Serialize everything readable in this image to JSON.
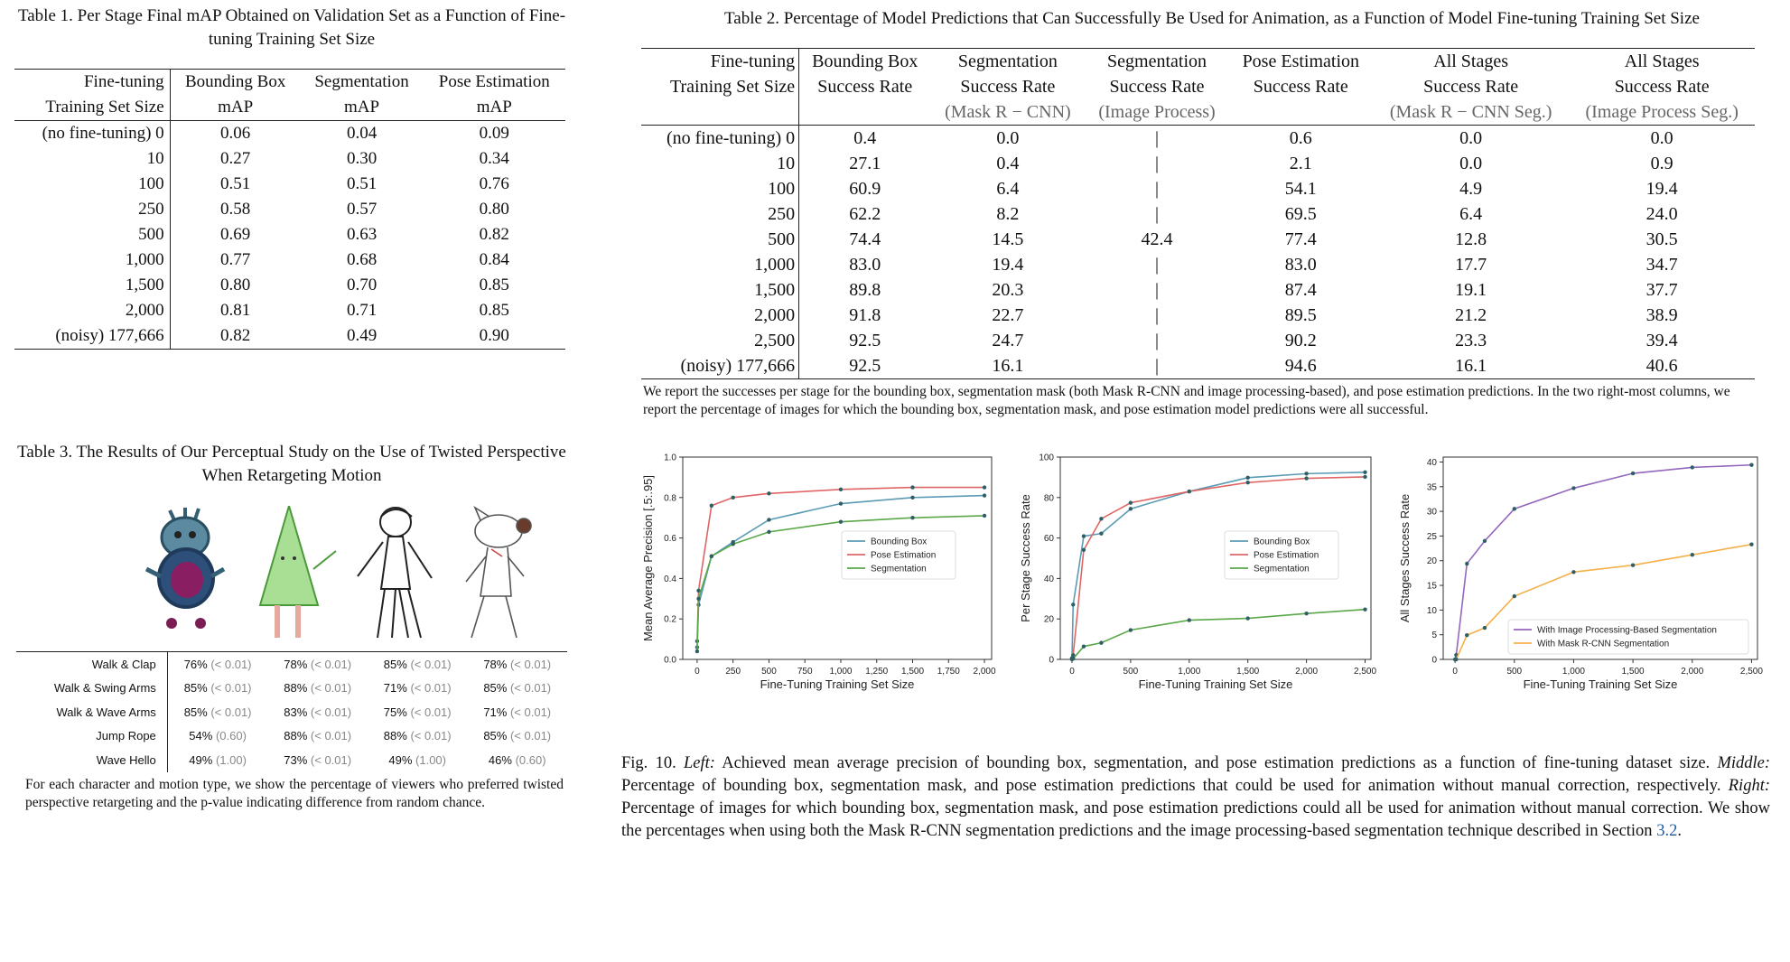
{
  "table1": {
    "caption": "Table 1.  Per Stage Final mAP Obtained on Validation Set as a Function of Fine-tuning Training Set Size",
    "headers": [
      [
        "Fine-tuning",
        "Training Set Size"
      ],
      [
        "Bounding Box",
        "mAP"
      ],
      [
        "Segmentation",
        "mAP"
      ],
      [
        "Pose Estimation",
        "mAP"
      ]
    ],
    "rows": [
      [
        "(no fine-tuning) 0",
        "0.06",
        "0.04",
        "0.09"
      ],
      [
        "10",
        "0.27",
        "0.30",
        "0.34"
      ],
      [
        "100",
        "0.51",
        "0.51",
        "0.76"
      ],
      [
        "250",
        "0.58",
        "0.57",
        "0.80"
      ],
      [
        "500",
        "0.69",
        "0.63",
        "0.82"
      ],
      [
        "1,000",
        "0.77",
        "0.68",
        "0.84"
      ],
      [
        "1,500",
        "0.80",
        "0.70",
        "0.85"
      ],
      [
        "2,000",
        "0.81",
        "0.71",
        "0.85"
      ],
      [
        "(noisy) 177,666",
        "0.82",
        "0.49",
        "0.90"
      ]
    ]
  },
  "table2": {
    "caption": "Table 2.  Percentage of Model Predictions that Can Successfully Be Used for Animation, as a Function of Model Fine-tuning Training Set Size",
    "headers": [
      [
        "Fine-tuning",
        "Training Set Size",
        ""
      ],
      [
        "Bounding Box",
        "Success Rate",
        ""
      ],
      [
        "Segmentation",
        "Success Rate",
        "(Mask R − CNN)"
      ],
      [
        "Segmentation",
        "Success Rate",
        "(Image Process)"
      ],
      [
        "Pose Estimation",
        "Success Rate",
        ""
      ],
      [
        "All Stages",
        "Success Rate",
        "(Mask R − CNN Seg.)"
      ],
      [
        "All Stages",
        "Success Rate",
        "(Image Process Seg.)"
      ]
    ],
    "rows": [
      [
        "(no fine-tuning) 0",
        "0.4",
        "0.0",
        "|",
        "0.6",
        "0.0",
        "0.0"
      ],
      [
        "10",
        "27.1",
        "0.4",
        "|",
        "2.1",
        "0.0",
        "0.9"
      ],
      [
        "100",
        "60.9",
        "6.4",
        "|",
        "54.1",
        "4.9",
        "19.4"
      ],
      [
        "250",
        "62.2",
        "8.2",
        "|",
        "69.5",
        "6.4",
        "24.0"
      ],
      [
        "500",
        "74.4",
        "14.5",
        "42.4",
        "77.4",
        "12.8",
        "30.5"
      ],
      [
        "1,000",
        "83.0",
        "19.4",
        "|",
        "83.0",
        "17.7",
        "34.7"
      ],
      [
        "1,500",
        "89.8",
        "20.3",
        "|",
        "87.4",
        "19.1",
        "37.7"
      ],
      [
        "2,000",
        "91.8",
        "22.7",
        "|",
        "89.5",
        "21.2",
        "38.9"
      ],
      [
        "2,500",
        "92.5",
        "24.7",
        "|",
        "90.2",
        "23.3",
        "39.4"
      ],
      [
        "(noisy) 177,666",
        "92.5",
        "16.1",
        "|",
        "94.6",
        "16.1",
        "40.6"
      ]
    ],
    "note": "We report the successes per stage for the bounding box, segmentation mask (both Mask R-CNN and image processing-based), and pose estimation predictions. In the two right-most columns, we report the percentage of images for which the bounding box, segmentation mask, and pose estimation model predictions were all successful."
  },
  "table3": {
    "caption": "Table 3.  The Results of Our Perceptual Study on the Use of Twisted Perspective When Retargeting Motion",
    "rows": [
      {
        "label": "Walk & Clap",
        "cells": [
          [
            "76%",
            "(< 0.01)"
          ],
          [
            "78%",
            "(< 0.01)"
          ],
          [
            "85%",
            "(< 0.01)"
          ],
          [
            "78%",
            "(< 0.01)"
          ]
        ]
      },
      {
        "label": "Walk & Swing Arms",
        "cells": [
          [
            "85%",
            "(< 0.01)"
          ],
          [
            "88%",
            "(< 0.01)"
          ],
          [
            "71%",
            "(< 0.01)"
          ],
          [
            "85%",
            "(< 0.01)"
          ]
        ]
      },
      {
        "label": "Walk & Wave Arms",
        "cells": [
          [
            "85%",
            "(< 0.01)"
          ],
          [
            "83%",
            "(< 0.01)"
          ],
          [
            "75%",
            "(< 0.01)"
          ],
          [
            "71%",
            "(< 0.01)"
          ]
        ]
      },
      {
        "label": "Jump Rope",
        "cells": [
          [
            "54%",
            "(0.60)"
          ],
          [
            "88%",
            "(< 0.01)"
          ],
          [
            "88%",
            "(< 0.01)"
          ],
          [
            "85%",
            "(< 0.01)"
          ]
        ]
      },
      {
        "label": "Wave Hello",
        "cells": [
          [
            "49%",
            "(1.00)"
          ],
          [
            "73%",
            "(< 0.01)"
          ],
          [
            "49%",
            "(1.00)"
          ],
          [
            "46%",
            "(0.60)"
          ]
        ]
      }
    ],
    "note": "For each character and motion type, we show the percentage of viewers who preferred twisted perspective retargeting and the p-value indicating difference from random chance."
  },
  "figure10": {
    "caption_label": "Fig. 10.",
    "left_label": "Left:",
    "left_text": " Achieved mean average precision of bounding box, segmentation, and pose estimation predictions as a function of fine-tuning dataset size.",
    "middle_label": "Middle:",
    "middle_text": " Percentage of bounding box, segmentation mask, and pose estimation predictions that could be used for animation without manual correction, respectively.",
    "right_label": "Right:",
    "right_text": " Percentage of images for which bounding box, segmentation mask, and pose estimation predictions could all be used for animation without manual correction. We show the percentages when using both the Mask R-CNN segmentation predictions and the image processing-based segmentation technique described in Section ",
    "section_ref": "3.2",
    "end": "."
  },
  "chart_data": [
    {
      "type": "line",
      "xlabel": "Fine-Tuning Training Set Size",
      "ylabel": "Mean Average Precision [.5:.95]",
      "xlim": [
        -100,
        2050
      ],
      "ylim": [
        0,
        1.0
      ],
      "xticks": [
        0,
        250,
        500,
        750,
        1000,
        1250,
        1500,
        1750,
        2000
      ],
      "xtick_labels": [
        "0",
        "250",
        "500",
        "750",
        "1,000",
        "1,250",
        "1,500",
        "1,750",
        "2,000"
      ],
      "yticks": [
        0.0,
        0.2,
        0.4,
        0.6,
        0.8,
        1.0
      ],
      "ytick_labels": [
        "0.0",
        "0.2",
        "0.4",
        "0.6",
        "0.8",
        "1.0"
      ],
      "legend_position": "center-right",
      "x": [
        0,
        10,
        100,
        250,
        500,
        1000,
        1500,
        2000
      ],
      "series": [
        {
          "name": "Bounding Box",
          "color": "#5b9bb5",
          "values": [
            0.06,
            0.27,
            0.51,
            0.58,
            0.69,
            0.77,
            0.8,
            0.81
          ]
        },
        {
          "name": "Pose Estimation",
          "color": "#e06666",
          "values": [
            0.09,
            0.34,
            0.76,
            0.8,
            0.82,
            0.84,
            0.85,
            0.85
          ]
        },
        {
          "name": "Segmentation",
          "color": "#5aa84a",
          "values": [
            0.04,
            0.3,
            0.51,
            0.57,
            0.63,
            0.68,
            0.7,
            0.71
          ]
        }
      ]
    },
    {
      "type": "line",
      "xlabel": "Fine-Tuning Training Set Size",
      "ylabel": "Per Stage Success Rate",
      "xlim": [
        -100,
        2550
      ],
      "ylim": [
        0,
        100
      ],
      "xticks": [
        0,
        500,
        1000,
        1500,
        2000,
        2500
      ],
      "xtick_labels": [
        "0",
        "500",
        "1,000",
        "1,500",
        "2,000",
        "2,500"
      ],
      "yticks": [
        0,
        20,
        40,
        60,
        80,
        100
      ],
      "ytick_labels": [
        "0",
        "20",
        "40",
        "60",
        "80",
        "100"
      ],
      "legend_position": "center-right",
      "x": [
        0,
        10,
        100,
        250,
        500,
        1000,
        1500,
        2000,
        2500
      ],
      "series": [
        {
          "name": "Bounding Box",
          "color": "#5b9bb5",
          "values": [
            0.4,
            27.1,
            60.9,
            62.2,
            74.4,
            83.0,
            89.8,
            91.8,
            92.5
          ]
        },
        {
          "name": "Pose Estimation",
          "color": "#e06666",
          "values": [
            0.6,
            2.1,
            54.1,
            69.5,
            77.4,
            83.0,
            87.4,
            89.5,
            90.2
          ]
        },
        {
          "name": "Segmentation",
          "color": "#5aa84a",
          "values": [
            0.0,
            0.4,
            6.4,
            8.2,
            14.5,
            19.4,
            20.3,
            22.7,
            24.7
          ]
        }
      ]
    },
    {
      "type": "line",
      "xlabel": "Fine-Tuning Training Set Size",
      "ylabel": "All Stages Success Rate",
      "xlim": [
        -100,
        2550
      ],
      "ylim": [
        0,
        41
      ],
      "xticks": [
        0,
        500,
        1000,
        1500,
        2000,
        2500
      ],
      "xtick_labels": [
        "0",
        "500",
        "1,000",
        "1,500",
        "2,000",
        "2,500"
      ],
      "yticks": [
        0,
        5,
        10,
        15,
        20,
        25,
        30,
        35,
        40
      ],
      "ytick_labels": [
        "0",
        "5",
        "10",
        "15",
        "20",
        "25",
        "30",
        "35",
        "40"
      ],
      "legend_position": "lower-right",
      "x": [
        0,
        10,
        100,
        250,
        500,
        1000,
        1500,
        2000,
        2500
      ],
      "series": [
        {
          "name": "With Image Processing-Based Segmentation",
          "color": "#9467bd",
          "values": [
            0.0,
            0.9,
            19.4,
            24.0,
            30.5,
            34.7,
            37.7,
            38.9,
            39.4
          ]
        },
        {
          "name": "With Mask R-CNN Segmentation",
          "color": "#f5b04a",
          "values": [
            0.0,
            0.0,
            4.9,
            6.4,
            12.8,
            17.7,
            19.1,
            21.2,
            23.3
          ]
        }
      ]
    }
  ]
}
